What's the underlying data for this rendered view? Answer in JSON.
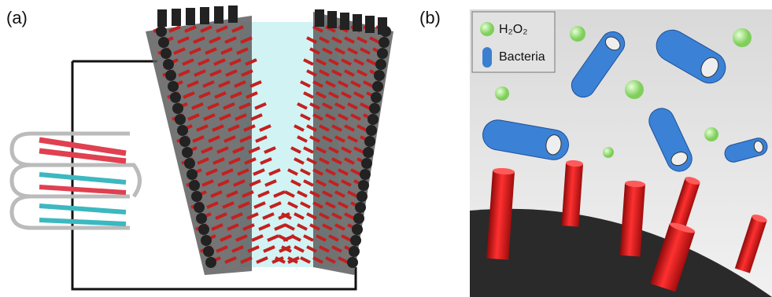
{
  "panels": [
    {
      "label": "(a)"
    },
    {
      "label": "(b)",
      "legend": [
        {
          "label": "H₂O₂"
        },
        {
          "label": "Bacteria"
        }
      ]
    }
  ]
}
